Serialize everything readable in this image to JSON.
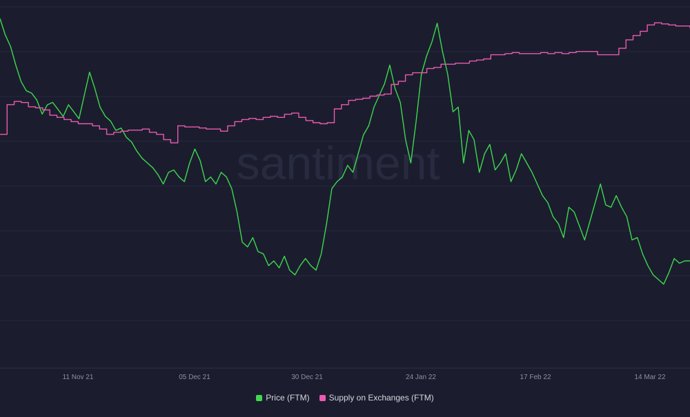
{
  "watermark": "santiment",
  "chart_data": {
    "type": "line",
    "title": "",
    "xlabel": "",
    "ylabel": "",
    "x_tick_labels": [
      "11 Nov 21",
      "05 Dec 21",
      "30 Dec 21",
      "24 Jan 22",
      "17 Feb 22",
      "14 Mar 22"
    ],
    "y_axes_visible": false,
    "grid": "horizontal",
    "legend_position": "bottom-center",
    "series": [
      {
        "name": "Price (FTM)",
        "color": "#3fd84f",
        "values": [
          2.28,
          2.21,
          2.16,
          2.08,
          2.01,
          1.97,
          1.96,
          1.93,
          1.87,
          1.91,
          1.92,
          1.89,
          1.86,
          1.91,
          1.88,
          1.85,
          1.95,
          2.05,
          1.98,
          1.9,
          1.86,
          1.84,
          1.8,
          1.81,
          1.77,
          1.75,
          1.71,
          1.68,
          1.66,
          1.64,
          1.61,
          1.57,
          1.62,
          1.63,
          1.6,
          1.58,
          1.66,
          1.72,
          1.67,
          1.58,
          1.6,
          1.57,
          1.62,
          1.6,
          1.55,
          1.45,
          1.32,
          1.3,
          1.34,
          1.28,
          1.27,
          1.22,
          1.24,
          1.21,
          1.26,
          1.2,
          1.18,
          1.22,
          1.25,
          1.22,
          1.2,
          1.27,
          1.4,
          1.55,
          1.58,
          1.6,
          1.65,
          1.62,
          1.7,
          1.78,
          1.82,
          1.9,
          1.95,
          2.0,
          2.08,
          1.98,
          1.92,
          1.76,
          1.66,
          1.84,
          2.04,
          2.12,
          2.18,
          2.26,
          2.14,
          2.04,
          1.88,
          1.9,
          1.66,
          1.8,
          1.76,
          1.62,
          1.7,
          1.74,
          1.63,
          1.66,
          1.7,
          1.58,
          1.63,
          1.7,
          1.66,
          1.62,
          1.57,
          1.52,
          1.49,
          1.43,
          1.4,
          1.34,
          1.47,
          1.45,
          1.39,
          1.33,
          1.41,
          1.49,
          1.57,
          1.48,
          1.47,
          1.52,
          1.47,
          1.43,
          1.33,
          1.34,
          1.27,
          1.22,
          1.18,
          1.16,
          1.14,
          1.19,
          1.25,
          1.23,
          1.24,
          1.24
        ],
        "unit": "USD"
      },
      {
        "name": "Supply on Exchanges (FTM)",
        "color": "#ec5ab0",
        "values": [
          520,
          548,
          551,
          550,
          546,
          545,
          543,
          538,
          536,
          534,
          532,
          530,
          530,
          528,
          525,
          520,
          522,
          523,
          524,
          524,
          525,
          522,
          520,
          515,
          512,
          528,
          527,
          527,
          526,
          525,
          525,
          523,
          528,
          532,
          534,
          535,
          534,
          536,
          537,
          536,
          539,
          540,
          536,
          533,
          531,
          530,
          531,
          544,
          548,
          552,
          553,
          554,
          556,
          557,
          558,
          567,
          570,
          576,
          578,
          578,
          582,
          583,
          586,
          586,
          587,
          587,
          589,
          590,
          591,
          595,
          595,
          596,
          597,
          596,
          596,
          596,
          597,
          596,
          597,
          596,
          597,
          598,
          598,
          598,
          595,
          595,
          595,
          601,
          609,
          613,
          617,
          623,
          625,
          624,
          623,
          622,
          622,
          620
        ],
        "unit": "M FTM"
      }
    ]
  }
}
